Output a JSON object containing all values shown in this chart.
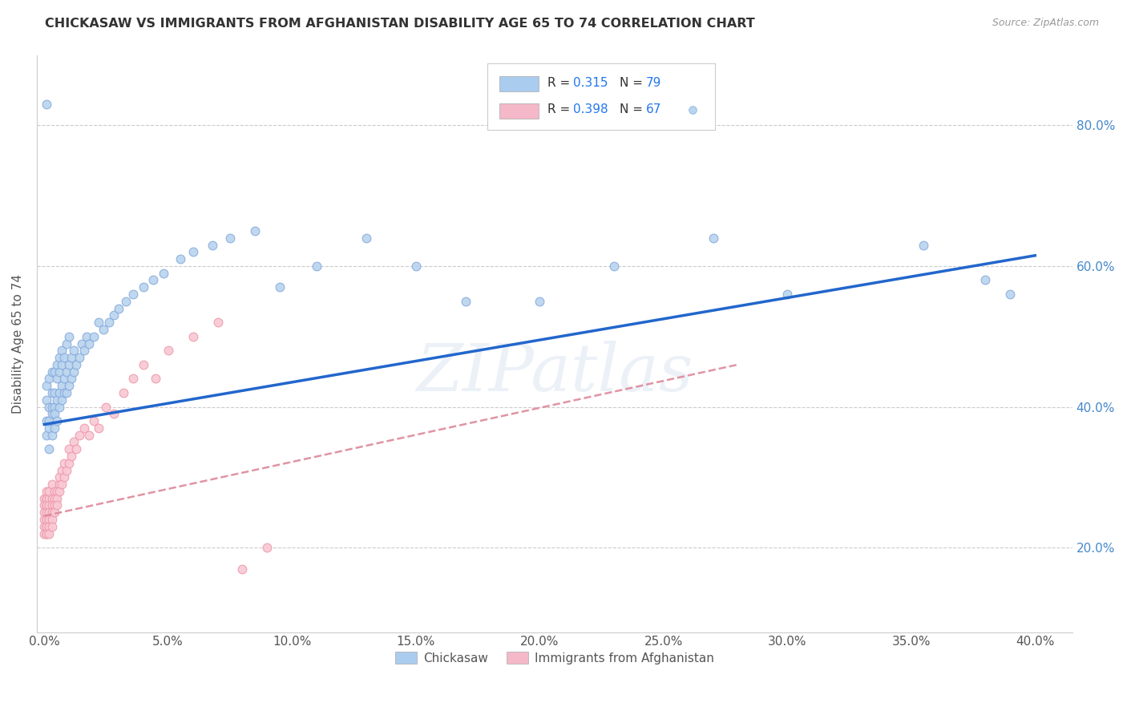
{
  "title": "CHICKASAW VS IMMIGRANTS FROM AFGHANISTAN DISABILITY AGE 65 TO 74 CORRELATION CHART",
  "source": "Source: ZipAtlas.com",
  "xlim": [
    -0.003,
    0.415
  ],
  "ylim": [
    0.08,
    0.9
  ],
  "watermark": "ZIPatlas",
  "legend_r1": "0.315",
  "legend_n1": "79",
  "legend_r2": "0.398",
  "legend_n2": "67",
  "color_blue": "#aaccee",
  "color_pink": "#f4b8c8",
  "line_blue": "#2266cc",
  "line_pink_dashed": "#dd8899",
  "scatter_blue_fill": "#b8d4ee",
  "scatter_pink_fill": "#f8c8d4",
  "scatter_blue_edge": "#88aadd",
  "scatter_pink_edge": "#ee99aa",
  "chickasaw_x": [
    0.001,
    0.001,
    0.001,
    0.001,
    0.002,
    0.002,
    0.002,
    0.002,
    0.002,
    0.003,
    0.003,
    0.003,
    0.003,
    0.003,
    0.004,
    0.004,
    0.004,
    0.004,
    0.004,
    0.005,
    0.005,
    0.005,
    0.005,
    0.006,
    0.006,
    0.006,
    0.006,
    0.007,
    0.007,
    0.007,
    0.007,
    0.008,
    0.008,
    0.008,
    0.009,
    0.009,
    0.009,
    0.01,
    0.01,
    0.01,
    0.011,
    0.011,
    0.012,
    0.012,
    0.013,
    0.014,
    0.015,
    0.016,
    0.017,
    0.018,
    0.02,
    0.022,
    0.024,
    0.026,
    0.028,
    0.03,
    0.033,
    0.036,
    0.04,
    0.044,
    0.048,
    0.055,
    0.06,
    0.068,
    0.075,
    0.085,
    0.095,
    0.11,
    0.13,
    0.15,
    0.17,
    0.2,
    0.23,
    0.27,
    0.3,
    0.355,
    0.38,
    0.39,
    0.001
  ],
  "chickasaw_y": [
    0.38,
    0.36,
    0.41,
    0.43,
    0.34,
    0.37,
    0.4,
    0.44,
    0.38,
    0.36,
    0.39,
    0.42,
    0.45,
    0.4,
    0.37,
    0.4,
    0.42,
    0.45,
    0.39,
    0.38,
    0.41,
    0.44,
    0.46,
    0.4,
    0.42,
    0.45,
    0.47,
    0.41,
    0.43,
    0.46,
    0.48,
    0.42,
    0.44,
    0.47,
    0.42,
    0.45,
    0.49,
    0.43,
    0.46,
    0.5,
    0.44,
    0.47,
    0.45,
    0.48,
    0.46,
    0.47,
    0.49,
    0.48,
    0.5,
    0.49,
    0.5,
    0.52,
    0.51,
    0.52,
    0.53,
    0.54,
    0.55,
    0.56,
    0.57,
    0.58,
    0.59,
    0.61,
    0.62,
    0.63,
    0.64,
    0.65,
    0.57,
    0.6,
    0.64,
    0.6,
    0.55,
    0.55,
    0.6,
    0.64,
    0.56,
    0.63,
    0.58,
    0.56,
    0.83
  ],
  "afghanistan_x": [
    0.0,
    0.0,
    0.0,
    0.0,
    0.0,
    0.0,
    0.001,
    0.001,
    0.001,
    0.001,
    0.001,
    0.001,
    0.001,
    0.001,
    0.001,
    0.001,
    0.001,
    0.001,
    0.002,
    0.002,
    0.002,
    0.002,
    0.002,
    0.002,
    0.002,
    0.003,
    0.003,
    0.003,
    0.003,
    0.003,
    0.003,
    0.004,
    0.004,
    0.004,
    0.004,
    0.005,
    0.005,
    0.005,
    0.006,
    0.006,
    0.006,
    0.007,
    0.007,
    0.008,
    0.008,
    0.009,
    0.01,
    0.01,
    0.011,
    0.012,
    0.013,
    0.014,
    0.016,
    0.018,
    0.02,
    0.022,
    0.025,
    0.028,
    0.032,
    0.036,
    0.04,
    0.045,
    0.05,
    0.06,
    0.07,
    0.08,
    0.09
  ],
  "afghanistan_y": [
    0.27,
    0.26,
    0.25,
    0.24,
    0.23,
    0.22,
    0.27,
    0.26,
    0.25,
    0.24,
    0.23,
    0.22,
    0.28,
    0.27,
    0.26,
    0.24,
    0.23,
    0.22,
    0.27,
    0.26,
    0.25,
    0.24,
    0.23,
    0.22,
    0.28,
    0.27,
    0.26,
    0.25,
    0.24,
    0.23,
    0.29,
    0.28,
    0.27,
    0.26,
    0.25,
    0.28,
    0.27,
    0.26,
    0.29,
    0.28,
    0.3,
    0.29,
    0.31,
    0.3,
    0.32,
    0.31,
    0.32,
    0.34,
    0.33,
    0.35,
    0.34,
    0.36,
    0.37,
    0.36,
    0.38,
    0.37,
    0.4,
    0.39,
    0.42,
    0.44,
    0.46,
    0.44,
    0.48,
    0.5,
    0.52,
    0.17,
    0.2
  ],
  "blue_line_x": [
    0.0,
    0.4
  ],
  "blue_line_y": [
    0.375,
    0.615
  ],
  "pink_line_x": [
    0.0,
    0.28
  ],
  "pink_line_y": [
    0.245,
    0.46
  ],
  "ytick_vals": [
    0.2,
    0.4,
    0.6,
    0.8
  ],
  "ytick_labels": [
    "20.0%",
    "40.0%",
    "60.0%",
    "80.0%"
  ],
  "xtick_vals": [
    0.0,
    0.05,
    0.1,
    0.15,
    0.2,
    0.25,
    0.3,
    0.35,
    0.4
  ],
  "xtick_labels": [
    "0.0%",
    "5.0%",
    "10.0%",
    "15.0%",
    "20.0%",
    "25.0%",
    "30.0%",
    "35.0%",
    "40.0%"
  ]
}
